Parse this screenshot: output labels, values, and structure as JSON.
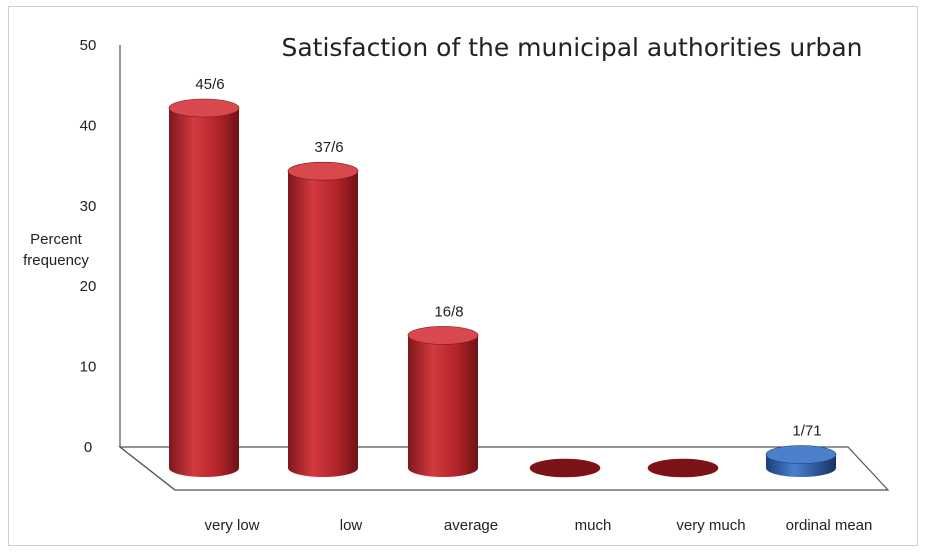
{
  "chart_data": {
    "type": "bar",
    "title": "Satisfaction of the municipal authorities urban",
    "ylabel_lines": [
      "Percent",
      "frequency"
    ],
    "xlabel": "",
    "ylim": [
      0,
      50
    ],
    "yticks": [
      0,
      10,
      20,
      30,
      40,
      50
    ],
    "categories": [
      "very low",
      "low",
      "average",
      "much",
      "very much",
      "ordinal mean"
    ],
    "values": [
      45.6,
      37.6,
      16.8,
      0,
      0,
      1.71
    ],
    "data_labels": [
      "45/6",
      "37/6",
      "16/8",
      "",
      "",
      "1/71"
    ],
    "grid": false,
    "legend": "none",
    "colors": {
      "bar": "#c0262b",
      "bar_dark": "#7a1418",
      "bar_top": "#d8484c",
      "highlight": "#2f63b0",
      "highlight_dark": "#1b3f78",
      "highlight_top": "#4a80cc",
      "axis": "#555555"
    }
  }
}
